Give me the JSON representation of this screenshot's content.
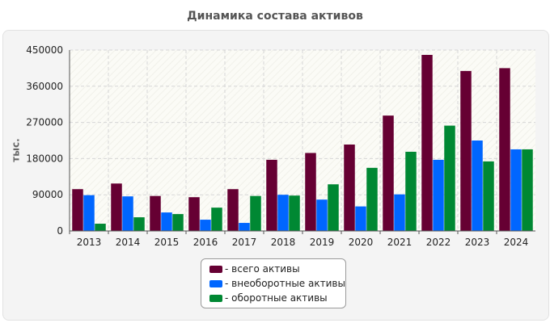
{
  "chart_data": {
    "type": "bar",
    "title": "Динамика состава активов",
    "ylabel": "тыс.",
    "xlabel": "",
    "ylim": [
      0,
      450000
    ],
    "yticks": [
      0,
      90000,
      180000,
      270000,
      360000,
      450000
    ],
    "grid": true,
    "legend_position": "bottom-center",
    "categories": [
      "2013",
      "2014",
      "2015",
      "2016",
      "2017",
      "2018",
      "2019",
      "2020",
      "2021",
      "2022",
      "2023",
      "2024"
    ],
    "series": [
      {
        "name": "- всего активы",
        "color": "#660033",
        "values": [
          104000,
          118000,
          87000,
          84000,
          104000,
          177000,
          194000,
          215000,
          287000,
          438000,
          398000,
          405000
        ]
      },
      {
        "name": "- внеоборотные активы",
        "color": "#0066ff",
        "values": [
          89000,
          86000,
          46000,
          28000,
          20000,
          90000,
          78000,
          61000,
          91000,
          177000,
          225000,
          203000
        ]
      },
      {
        "name": "- оборотные активы",
        "color": "#008833",
        "values": [
          18000,
          34000,
          42000,
          58000,
          87000,
          88000,
          116000,
          157000,
          197000,
          262000,
          173000,
          203000
        ]
      }
    ]
  }
}
